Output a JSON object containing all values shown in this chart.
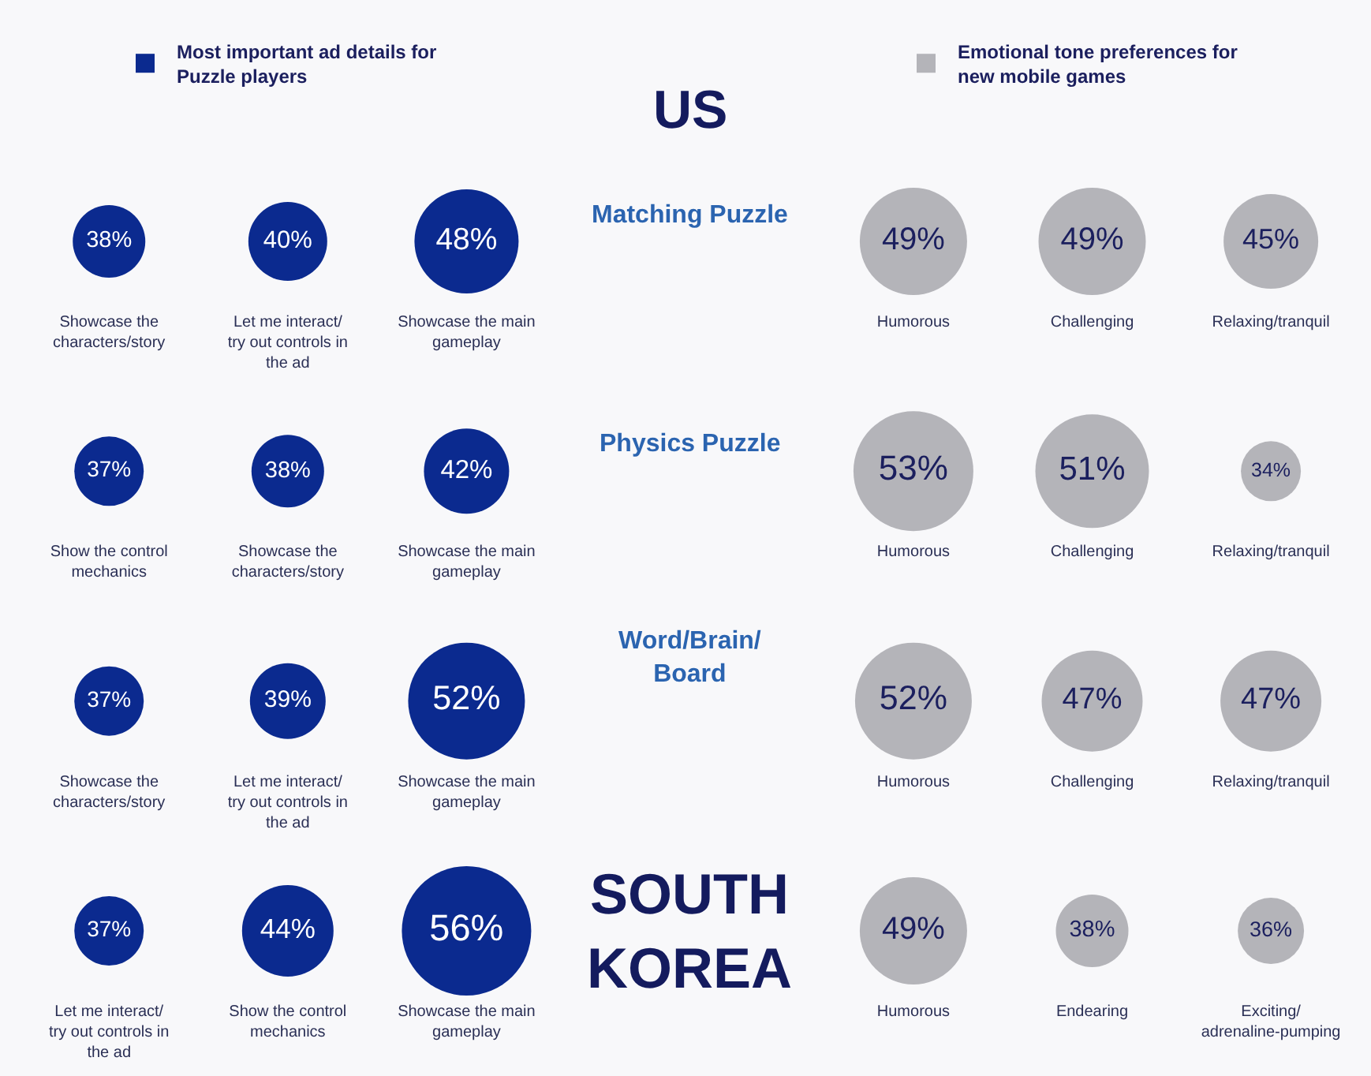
{
  "chart_data": [
    {
      "type": "other",
      "title": "Matching Puzzle",
      "annotations": [
        "US"
      ],
      "legend": "top",
      "categories": [
        "Showcase the characters/story",
        "Let me interact/ try out controls in the ad",
        "Showcase the main gameplay",
        "Humorous",
        "Challenging",
        "Relaxing/tranquil"
      ],
      "series": [
        {
          "name": "Most important ad details for Puzzle players",
          "color": "#0b2a8f",
          "values": [
            38,
            40,
            48,
            null,
            null,
            null
          ],
          "value_labels": [
            "38%",
            "40%",
            "48%",
            null,
            null,
            null
          ]
        },
        {
          "name": "Emotional tone preferences for new mobile games",
          "color": "#b4b4b9",
          "values": [
            null,
            null,
            null,
            49,
            49,
            45
          ],
          "value_labels": [
            null,
            null,
            null,
            "49%",
            "49%",
            "45%"
          ]
        }
      ]
    },
    {
      "type": "other",
      "title": "Physics Puzzle",
      "categories": [
        "Show the control mechanics",
        "Showcase the characters/story",
        "Showcase the main gameplay",
        "Humorous",
        "Challenging",
        "Relaxing/tranquil"
      ],
      "series": [
        {
          "color": "#0b2a8f",
          "values": [
            37,
            38,
            42,
            null,
            null,
            null
          ],
          "value_labels": [
            "37%",
            "38%",
            "42%",
            null,
            null,
            null
          ]
        },
        {
          "color": "#b4b4b9",
          "values": [
            null,
            null,
            null,
            53,
            51,
            34
          ],
          "value_labels": [
            null,
            null,
            null,
            "53%",
            "51%",
            "34%"
          ]
        }
      ]
    },
    {
      "type": "other",
      "title": "Word/Brain/Board",
      "categories": [
        "Showcase the characters/story",
        "Let me interact/ try out controls in the ad",
        "Showcase the main gameplay",
        "Humorous",
        "Challenging",
        "Relaxing/tranquil"
      ],
      "series": [
        {
          "color": "#0b2a8f",
          "values": [
            37,
            39,
            52,
            null,
            null,
            null
          ],
          "value_labels": [
            "37%",
            "39%",
            "52%",
            null,
            null,
            null
          ]
        },
        {
          "color": "#b4b4b9",
          "values": [
            null,
            null,
            null,
            52,
            47,
            47
          ],
          "value_labels": [
            null,
            null,
            null,
            "52%",
            "47%",
            "47%"
          ]
        }
      ]
    },
    {
      "type": "other",
      "annotations": [
        "SOUTH KOREA"
      ],
      "categories": [
        "Let me interact/ try out controls in the ad",
        "Show the control mechanics",
        "Showcase the main gameplay",
        "Humorous",
        "Endearing",
        "Exciting/adrenaline-pumping"
      ],
      "series": [
        {
          "color": "#0b2a8f",
          "values": [
            37,
            44,
            56,
            null,
            null,
            null
          ],
          "value_labels": [
            "37%",
            "44%",
            "56%",
            null,
            null,
            null
          ]
        },
        {
          "color": "#b4b4b9",
          "values": [
            null,
            null,
            null,
            49,
            38,
            36
          ],
          "value_labels": [
            null,
            null,
            null,
            "49%",
            "38%",
            "36%"
          ]
        }
      ]
    }
  ]
}
